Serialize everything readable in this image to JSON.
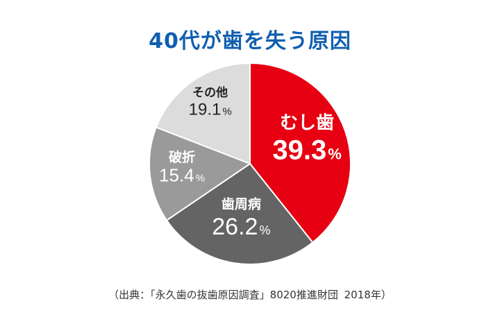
{
  "chart_data": {
    "type": "pie",
    "title": "40代が歯を失う原因",
    "slices": [
      {
        "label": "むし歯",
        "value": 39.3,
        "color": "#e60012",
        "text_color": "#ffffff"
      },
      {
        "label": "歯周病",
        "value": 26.2,
        "color": "#656464",
        "text_color": "#ffffff"
      },
      {
        "label": "破折",
        "value": 15.4,
        "color": "#9a9a9a",
        "text_color": "#ffffff"
      },
      {
        "label": "その他",
        "value": 19.1,
        "color": "#dcdcdc",
        "text_color": "#222222"
      }
    ],
    "unit": "%"
  },
  "source": {
    "text": "（出典：「永久歯の抜歯原因調査」8020推進財団",
    "year": "2018年）"
  }
}
